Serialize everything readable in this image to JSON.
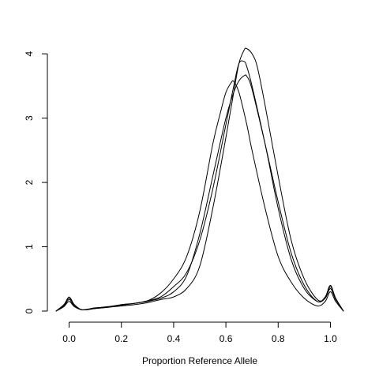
{
  "chart_data": {
    "type": "line",
    "title": "",
    "xlabel": "Proportion Reference Allele",
    "ylabel": "",
    "xlim": [
      -0.05,
      1.05
    ],
    "ylim": [
      0,
      4.1
    ],
    "x_ticks": [
      "0.0",
      "0.2",
      "0.4",
      "0.6",
      "0.8",
      "1.0"
    ],
    "x_tick_values": [
      0,
      0.2,
      0.4,
      0.6,
      0.8,
      1.0
    ],
    "y_ticks": [
      "0",
      "1",
      "2",
      "3",
      "4"
    ],
    "y_tick_values": [
      0,
      1,
      2,
      3,
      4
    ],
    "grid": false,
    "line_color": "#000000",
    "series": [
      {
        "x": [
          -0.05,
          -0.02,
          0.0,
          0.02,
          0.05,
          0.1,
          0.15,
          0.2,
          0.25,
          0.3,
          0.35,
          0.4,
          0.45,
          0.5,
          0.55,
          0.58,
          0.6,
          0.62,
          0.63,
          0.65,
          0.68,
          0.7,
          0.75,
          0.8,
          0.85,
          0.9,
          0.95,
          0.98,
          1.0,
          1.02,
          1.05
        ],
        "y": [
          0.0,
          0.1,
          0.2,
          0.1,
          0.02,
          0.04,
          0.06,
          0.09,
          0.12,
          0.16,
          0.28,
          0.5,
          0.85,
          1.55,
          2.6,
          3.1,
          3.4,
          3.55,
          3.57,
          3.4,
          2.9,
          2.5,
          1.6,
          0.85,
          0.45,
          0.2,
          0.08,
          0.15,
          0.3,
          0.15,
          0.0
        ]
      },
      {
        "x": [
          -0.05,
          -0.02,
          0.0,
          0.02,
          0.05,
          0.1,
          0.15,
          0.2,
          0.25,
          0.3,
          0.35,
          0.4,
          0.45,
          0.5,
          0.55,
          0.6,
          0.63,
          0.65,
          0.67,
          0.68,
          0.7,
          0.75,
          0.8,
          0.85,
          0.9,
          0.95,
          0.98,
          1.0,
          1.02,
          1.05
        ],
        "y": [
          0.0,
          0.1,
          0.22,
          0.1,
          0.02,
          0.05,
          0.07,
          0.1,
          0.12,
          0.16,
          0.22,
          0.38,
          0.6,
          1.1,
          1.9,
          2.9,
          3.5,
          3.85,
          3.88,
          3.8,
          3.5,
          2.6,
          1.6,
          0.8,
          0.35,
          0.15,
          0.2,
          0.38,
          0.2,
          0.0
        ]
      },
      {
        "x": [
          -0.05,
          -0.02,
          0.0,
          0.02,
          0.05,
          0.1,
          0.15,
          0.2,
          0.25,
          0.3,
          0.35,
          0.4,
          0.45,
          0.5,
          0.55,
          0.6,
          0.63,
          0.65,
          0.67,
          0.68,
          0.7,
          0.75,
          0.8,
          0.85,
          0.9,
          0.95,
          0.98,
          1.0,
          1.02,
          1.05
        ],
        "y": [
          0.0,
          0.08,
          0.18,
          0.08,
          0.02,
          0.05,
          0.06,
          0.1,
          0.12,
          0.15,
          0.2,
          0.3,
          0.55,
          1.2,
          2.1,
          3.0,
          3.4,
          3.58,
          3.66,
          3.65,
          3.45,
          2.6,
          1.7,
          0.9,
          0.4,
          0.15,
          0.22,
          0.4,
          0.2,
          0.0
        ]
      },
      {
        "x": [
          -0.05,
          -0.02,
          0.0,
          0.02,
          0.05,
          0.1,
          0.15,
          0.2,
          0.25,
          0.3,
          0.35,
          0.4,
          0.45,
          0.5,
          0.55,
          0.6,
          0.63,
          0.65,
          0.67,
          0.68,
          0.7,
          0.72,
          0.75,
          0.8,
          0.85,
          0.9,
          0.95,
          0.98,
          1.0,
          1.02,
          1.05
        ],
        "y": [
          0.0,
          0.07,
          0.15,
          0.07,
          0.02,
          0.04,
          0.06,
          0.08,
          0.1,
          0.13,
          0.18,
          0.22,
          0.35,
          0.7,
          1.6,
          2.7,
          3.4,
          3.85,
          4.06,
          4.08,
          4.0,
          3.8,
          3.2,
          2.1,
          1.1,
          0.5,
          0.18,
          0.2,
          0.35,
          0.18,
          0.0
        ]
      }
    ]
  }
}
